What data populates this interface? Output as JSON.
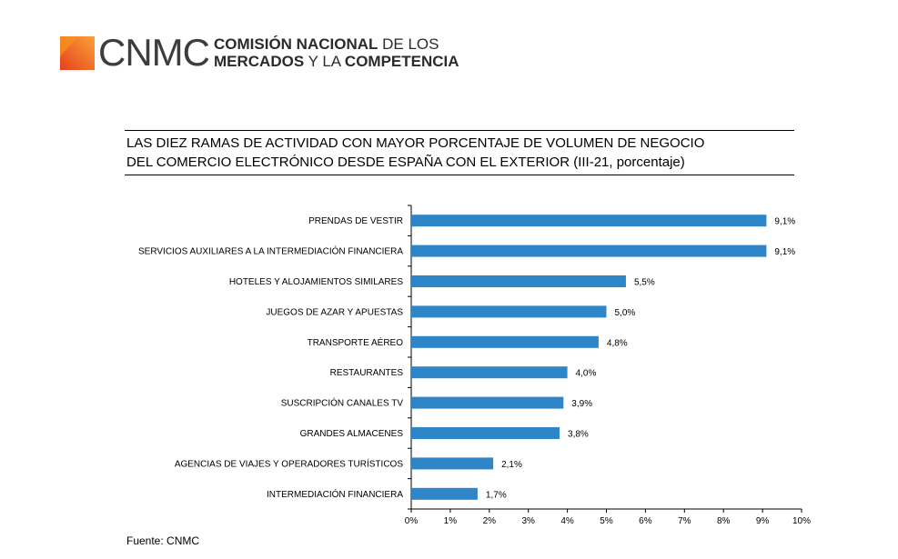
{
  "logo": {
    "mark": "CNMC",
    "name_line1_bold": "COMISIÓN NACIONAL",
    "name_line1_rest": " DE LOS",
    "name_line2_bold1": "MERCADOS",
    "name_line2_mid": " Y LA ",
    "name_line2_bold2": "COMPETENCIA",
    "colors": [
      "#f04e23",
      "#f7941d"
    ]
  },
  "title": {
    "line1": "LAS DIEZ RAMAS DE ACTIVIDAD CON MAYOR PORCENTAJE DE VOLUMEN DE NEGOCIO",
    "line2": "DEL COMERCIO ELECTRÓNICO DESDE ESPAÑA CON EL EXTERIOR (III-21, porcentaje)"
  },
  "source": "Fuente: CNMC",
  "chart_data": {
    "type": "bar",
    "orientation": "horizontal",
    "categories": [
      "PRENDAS DE VESTIR",
      "SERVICIOS AUXILIARES A LA INTERMEDIACIÓN FINANCIERA",
      "HOTELES  Y ALOJAMIENTOS SIMILARES",
      "JUEGOS DE AZAR Y APUESTAS",
      "TRANSPORTE AÉREO",
      "RESTAURANTES",
      "SUSCRIPCIÓN CANALES TV",
      "GRANDES ALMACENES",
      "AGENCIAS DE VIAJES Y OPERADORES TURÍSTICOS",
      "INTERMEDIACIÓN FINANCIERA"
    ],
    "values": [
      9.1,
      9.1,
      5.5,
      5.0,
      4.8,
      4.0,
      3.9,
      3.8,
      2.1,
      1.7
    ],
    "value_labels": [
      "9,1%",
      "9,1%",
      "5,5%",
      "5,0%",
      "4,8%",
      "4,0%",
      "3,9%",
      "3,8%",
      "2,1%",
      "1,7%"
    ],
    "x_ticks": [
      0,
      1,
      2,
      3,
      4,
      5,
      6,
      7,
      8,
      9,
      10
    ],
    "x_tick_labels": [
      "0%",
      "1%",
      "2%",
      "3%",
      "4%",
      "5%",
      "6%",
      "7%",
      "8%",
      "9%",
      "10%"
    ],
    "xlim": [
      0,
      10
    ],
    "grid": false,
    "bar_color": "#2e86c8"
  }
}
